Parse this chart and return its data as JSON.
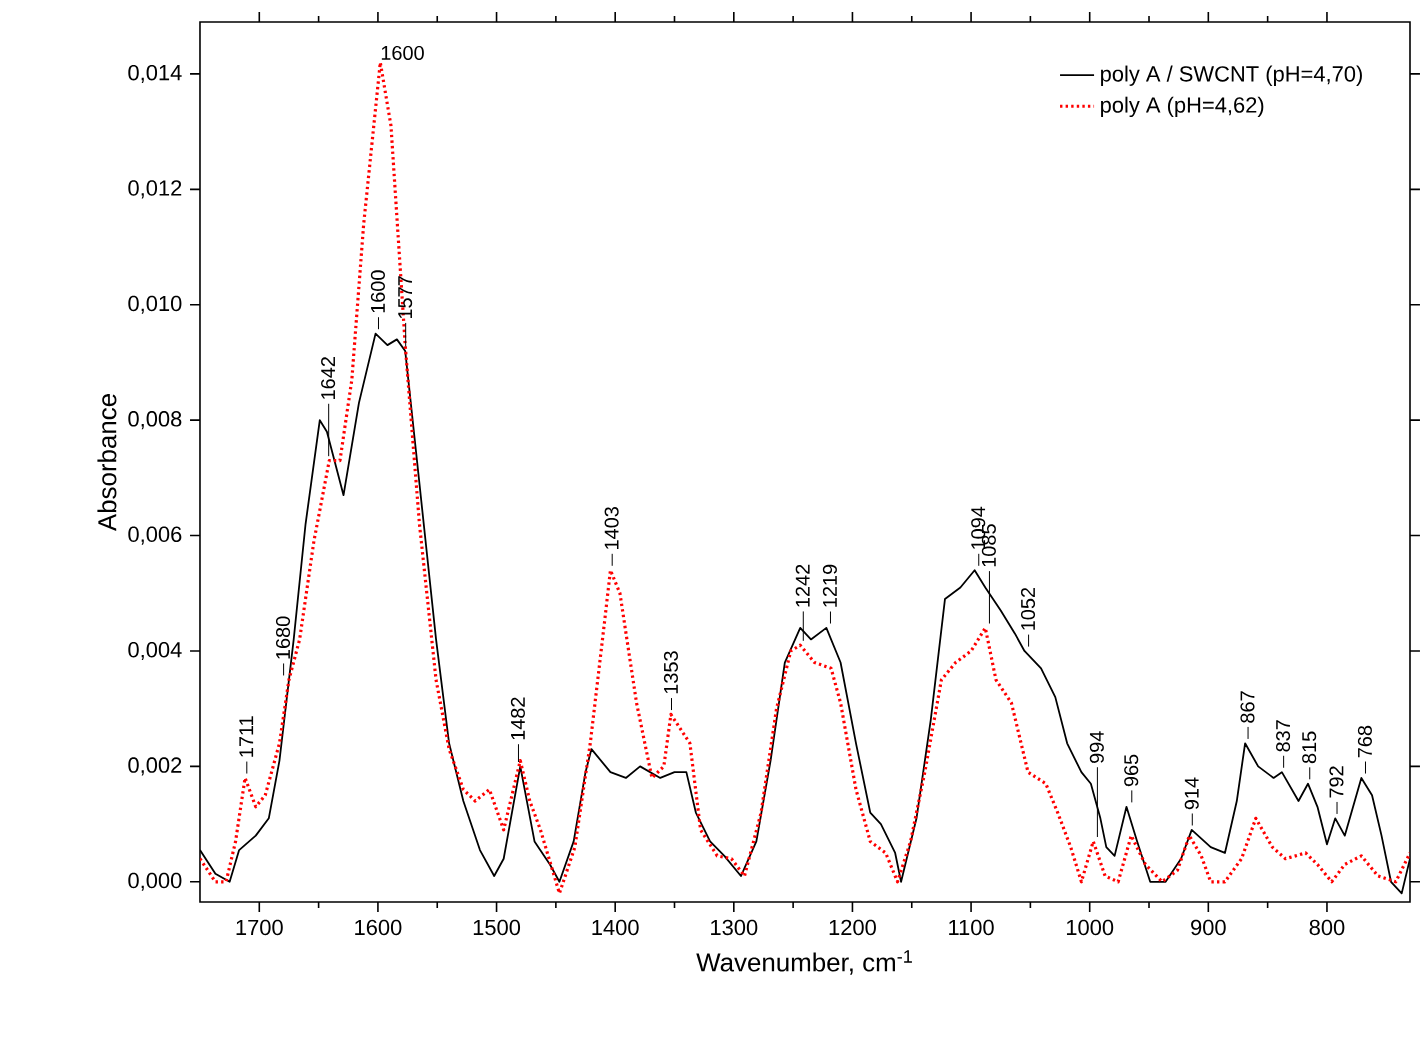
{
  "chart_data": {
    "type": "line",
    "xlabel": "Wavenumber, cm$^{-1}$",
    "ylabel": "Absorbance",
    "xlim": [
      1750,
      730
    ],
    "ylim": [
      -0.00035,
      0.0149
    ],
    "xticks": [
      1700,
      1600,
      1500,
      1400,
      1300,
      1200,
      1100,
      1000,
      900,
      800
    ],
    "yticks": [
      {
        "value": 0,
        "label": "0,000"
      },
      {
        "value": 0.002,
        "label": "0,002"
      },
      {
        "value": 0.004,
        "label": "0,004"
      },
      {
        "value": 0.006,
        "label": "0,006"
      },
      {
        "value": 0.008,
        "label": "0,008"
      },
      {
        "value": 0.01,
        "label": "0,010"
      },
      {
        "value": 0.012,
        "label": "0,012"
      },
      {
        "value": 0.014,
        "label": "0,014"
      }
    ],
    "legend": "top right",
    "grid": false,
    "series": [
      {
        "name": "poly A / SWCNT (pH=4,70)",
        "color": "#000000",
        "line_style": "solid",
        "x": [
          1750,
          1737,
          1725,
          1717,
          1703,
          1692,
          1683,
          1671,
          1661,
          1649,
          1643,
          1629,
          1616,
          1602,
          1592,
          1584,
          1577,
          1565,
          1551,
          1540,
          1528,
          1514,
          1502,
          1494,
          1480,
          1468,
          1455,
          1447,
          1435,
          1425,
          1420,
          1404,
          1391,
          1379,
          1362,
          1350,
          1340,
          1332,
          1320,
          1308,
          1294,
          1281,
          1269,
          1257,
          1244,
          1235,
          1222,
          1210,
          1197,
          1185,
          1176,
          1164,
          1159,
          1146,
          1134,
          1122,
          1109,
          1097,
          1088,
          1075,
          1063,
          1055,
          1041,
          1029,
          1019,
          1007,
          999,
          991,
          986,
          979,
          969,
          960,
          949,
          936,
          923,
          914,
          898,
          886,
          876,
          869,
          858,
          845,
          838,
          824,
          816,
          808,
          800,
          793,
          785,
          771,
          762,
          754,
          746,
          737,
          730
        ],
        "values": [
          0.00055,
          0.00014,
          0.0,
          0.00055,
          0.0008,
          0.0011,
          0.0021,
          0.0042,
          0.0062,
          0.008,
          0.0078,
          0.0067,
          0.0083,
          0.0095,
          0.0093,
          0.0094,
          0.0092,
          0.0069,
          0.0042,
          0.0024,
          0.0014,
          0.00055,
          0.0001,
          0.0004,
          0.002,
          0.0007,
          0.0003,
          0.0,
          0.0007,
          0.0019,
          0.0023,
          0.0019,
          0.0018,
          0.002,
          0.0018,
          0.0019,
          0.0019,
          0.0012,
          0.0007,
          0.00045,
          0.0001,
          0.0007,
          0.0021,
          0.0038,
          0.0044,
          0.0042,
          0.0044,
          0.0038,
          0.0024,
          0.0012,
          0.001,
          0.0005,
          0.0,
          0.0011,
          0.0028,
          0.0049,
          0.0051,
          0.0054,
          0.0051,
          0.0047,
          0.0043,
          0.004,
          0.0037,
          0.0032,
          0.0024,
          0.0019,
          0.0017,
          0.0011,
          0.0006,
          0.00045,
          0.0013,
          0.0007,
          0.0,
          0.0,
          0.0004,
          0.0009,
          0.0006,
          0.0005,
          0.0014,
          0.0024,
          0.002,
          0.0018,
          0.0019,
          0.0014,
          0.0017,
          0.0013,
          0.00065,
          0.0011,
          0.0008,
          0.0018,
          0.0015,
          0.0008,
          0.0,
          -0.0002,
          0.0004
        ]
      },
      {
        "name": "poly A (pH=4,62)",
        "color": "#ff0000",
        "line_style": "dotted",
        "x": [
          1750,
          1737,
          1728,
          1720,
          1712,
          1703,
          1695,
          1683,
          1675,
          1666,
          1654,
          1641,
          1632,
          1622,
          1612,
          1598,
          1589,
          1577,
          1565,
          1551,
          1540,
          1528,
          1518,
          1506,
          1494,
          1480,
          1472,
          1463,
          1447,
          1434,
          1421,
          1409,
          1404,
          1396,
          1382,
          1369,
          1359,
          1353,
          1337,
          1328,
          1314,
          1302,
          1291,
          1277,
          1264,
          1252,
          1244,
          1232,
          1218,
          1210,
          1197,
          1185,
          1172,
          1162,
          1151,
          1139,
          1125,
          1113,
          1100,
          1088,
          1079,
          1066,
          1052,
          1037,
          1027,
          1016,
          1007,
          997,
          987,
          976,
          965,
          953,
          939,
          926,
          916,
          906,
          898,
          886,
          872,
          860,
          846,
          835,
          818,
          808,
          796,
          785,
          771,
          757,
          742,
          730
        ],
        "values": [
          0.0004,
          0.0,
          0.0,
          0.0007,
          0.0018,
          0.0013,
          0.0015,
          0.0024,
          0.0035,
          0.0042,
          0.0059,
          0.0073,
          0.0073,
          0.0087,
          0.0114,
          0.0142,
          0.0131,
          0.0093,
          0.0062,
          0.0035,
          0.0023,
          0.0016,
          0.0014,
          0.0016,
          0.0009,
          0.0021,
          0.0014,
          0.0009,
          -0.0002,
          0.0006,
          0.0024,
          0.0045,
          0.0054,
          0.005,
          0.0031,
          0.0018,
          0.002,
          0.0029,
          0.0024,
          0.0009,
          0.00045,
          0.0004,
          0.0001,
          0.0012,
          0.003,
          0.004,
          0.0041,
          0.0038,
          0.0037,
          0.0031,
          0.0016,
          0.0007,
          0.0005,
          0.0,
          0.0007,
          0.0019,
          0.0035,
          0.0038,
          0.004,
          0.0044,
          0.0035,
          0.0031,
          0.0019,
          0.0017,
          0.0012,
          0.0006,
          0.0,
          0.0007,
          0.0001,
          0.0,
          0.0008,
          0.0003,
          0.0,
          0.0002,
          0.0008,
          0.00045,
          0.0,
          0.0,
          0.0004,
          0.0011,
          0.0006,
          0.0004,
          0.0005,
          0.0003,
          0.0,
          0.0003,
          0.00045,
          0.0001,
          0.0,
          0.0005
        ]
      }
    ],
    "annotations": [
      {
        "text": "1711",
        "x": 1711,
        "y": 0.0018
      },
      {
        "text": "1680",
        "x": 1680,
        "y": 0.0035
      },
      {
        "text": "1642",
        "x": 1642,
        "y": 0.0073
      },
      {
        "text": "1600",
        "x": 1600,
        "y": 0.0142
      },
      {
        "text": "1600",
        "x": 1600,
        "y": 0.0095
      },
      {
        "text": "1577",
        "x": 1577,
        "y": 0.0092
      },
      {
        "text": "1482",
        "x": 1482,
        "y": 0.002
      },
      {
        "text": "1403",
        "x": 1403,
        "y": 0.0054
      },
      {
        "text": "1353",
        "x": 1353,
        "y": 0.0029
      },
      {
        "text": "1242",
        "x": 1242,
        "y": 0.0041
      },
      {
        "text": "1219",
        "x": 1219,
        "y": 0.0044
      },
      {
        "text": "1094",
        "x": 1094,
        "y": 0.0054
      },
      {
        "text": "1085",
        "x": 1085,
        "y": 0.0044
      },
      {
        "text": "1052",
        "x": 1052,
        "y": 0.004
      },
      {
        "text": "994",
        "x": 994,
        "y": 0.0007
      },
      {
        "text": "965",
        "x": 965,
        "y": 0.0013
      },
      {
        "text": "914",
        "x": 914,
        "y": 0.0009
      },
      {
        "text": "867",
        "x": 867,
        "y": 0.0024
      },
      {
        "text": "837",
        "x": 837,
        "y": 0.0019
      },
      {
        "text": "815",
        "x": 815,
        "y": 0.0017
      },
      {
        "text": "792",
        "x": 792,
        "y": 0.0011
      },
      {
        "text": "768",
        "x": 768,
        "y": 0.0018
      }
    ]
  }
}
